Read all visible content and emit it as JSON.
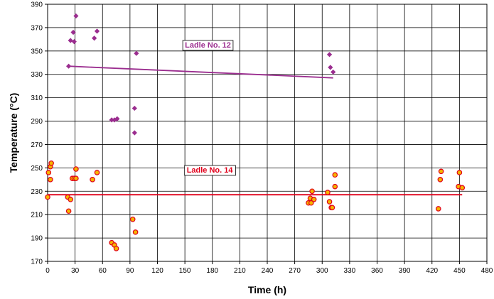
{
  "chart_data": {
    "type": "scatter",
    "title": "",
    "xlabel": "Time (h)",
    "ylabel": "Temperature (°C)",
    "xlim": [
      0,
      480
    ],
    "ylim": [
      170,
      390
    ],
    "xticks": [
      0,
      30,
      60,
      90,
      120,
      150,
      180,
      210,
      240,
      270,
      300,
      330,
      360,
      390,
      420,
      450,
      480
    ],
    "yticks": [
      170,
      190,
      210,
      230,
      250,
      270,
      290,
      310,
      330,
      350,
      370,
      390
    ],
    "grid": true,
    "legend": "none",
    "series": [
      {
        "name": "Ladle No. 12",
        "label_at": [
          150,
          353
        ],
        "color": "#9b2d8f",
        "marker": "diamond",
        "points": [
          [
            23,
            337
          ],
          [
            25,
            359
          ],
          [
            28,
            366
          ],
          [
            29,
            358
          ],
          [
            31,
            380
          ],
          [
            51,
            361
          ],
          [
            54,
            367
          ],
          [
            70,
            291
          ],
          [
            73,
            291
          ],
          [
            76,
            292
          ],
          [
            95,
            301
          ],
          [
            95,
            280
          ],
          [
            97,
            348
          ],
          [
            308,
            347
          ],
          [
            309,
            336
          ],
          [
            312,
            332
          ]
        ],
        "trend": [
          [
            23,
            337
          ],
          [
            312,
            327
          ]
        ]
      },
      {
        "name": "Ladle No. 14",
        "label_at": [
          152,
          246
        ],
        "color": "#e0001b",
        "marker": "circle",
        "marker_fill": "#f5b400",
        "points": [
          [
            0,
            225
          ],
          [
            1,
            246
          ],
          [
            3,
            240
          ],
          [
            3,
            251
          ],
          [
            4,
            254
          ],
          [
            22,
            225
          ],
          [
            23,
            213
          ],
          [
            25,
            223
          ],
          [
            27,
            241
          ],
          [
            29,
            241
          ],
          [
            31,
            249
          ],
          [
            31,
            241
          ],
          [
            49,
            240
          ],
          [
            54,
            246
          ],
          [
            70,
            186
          ],
          [
            73,
            184
          ],
          [
            75,
            181
          ],
          [
            93,
            206
          ],
          [
            96,
            195
          ],
          [
            285,
            220
          ],
          [
            287,
            224
          ],
          [
            288,
            220
          ],
          [
            289,
            230
          ],
          [
            291,
            223
          ],
          [
            306,
            229
          ],
          [
            308,
            221
          ],
          [
            310,
            216
          ],
          [
            311,
            216
          ],
          [
            314,
            234
          ],
          [
            314,
            244
          ],
          [
            427,
            215
          ],
          [
            429,
            240
          ],
          [
            430,
            247
          ],
          [
            449,
            234
          ],
          [
            450,
            246
          ],
          [
            453,
            233
          ]
        ],
        "trend": [
          [
            0,
            227
          ],
          [
            453,
            227
          ]
        ]
      }
    ]
  }
}
